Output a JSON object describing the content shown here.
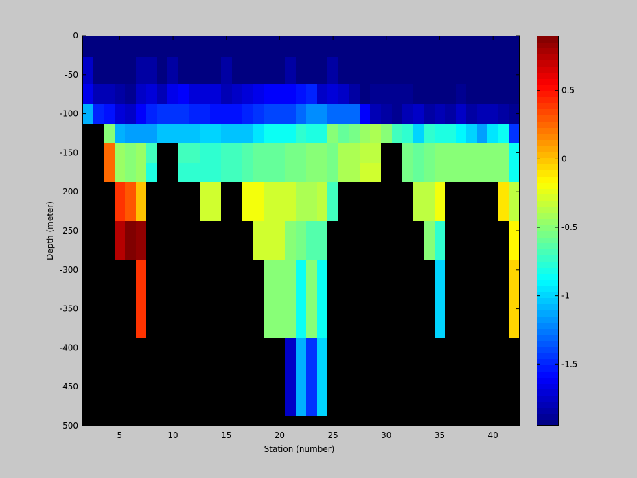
{
  "chart_data": {
    "type": "heatmap",
    "title": "",
    "xlabel": "Station (number)",
    "ylabel": "Depth (meter)",
    "xlim": [
      1.5,
      42.5
    ],
    "ylim": [
      -500,
      0
    ],
    "xticks": [
      5,
      10,
      15,
      20,
      25,
      30,
      35,
      40
    ],
    "yticks": [
      0,
      -50,
      -100,
      -150,
      -200,
      -250,
      -300,
      -350,
      -400,
      -450,
      -500
    ],
    "colorbar": {
      "colormap": "jet",
      "clim": [
        -1.95,
        0.9
      ],
      "ticks": [
        0.5,
        0,
        -0.5,
        -1,
        -1.5
      ],
      "tick_labels": [
        "0.5",
        "0",
        "-0.5",
        "-1",
        "-1.5"
      ]
    },
    "missing_color": "#000000",
    "background_color": "#c8c8c8",
    "stations": [
      2,
      3,
      4,
      5,
      6,
      7,
      8,
      9,
      10,
      11,
      12,
      13,
      14,
      15,
      16,
      17,
      18,
      19,
      20,
      21,
      22,
      23,
      24,
      25,
      26,
      27,
      28,
      29,
      30,
      31,
      32,
      33,
      34,
      35,
      36,
      37,
      38,
      39,
      40,
      41,
      42
    ],
    "depths": [
      -5,
      -50,
      -75,
      -100,
      -125,
      -150,
      -175,
      -200,
      -225,
      -250,
      -275,
      -300,
      -325,
      -350,
      -375,
      -400,
      -425,
      -450,
      -475,
      -500
    ],
    "values": [
      [
        -1.95,
        -1.95,
        -1.95,
        -1.95,
        -1.95,
        -1.95,
        -1.95,
        -1.95,
        -1.95,
        -1.95,
        -1.95,
        -1.95,
        -1.95,
        -1.95,
        -1.95,
        -1.95,
        -1.95,
        -1.95,
        -1.95,
        -1.95,
        -1.95,
        -1.95,
        -1.95,
        -1.95,
        -1.95,
        -1.95,
        -1.95,
        -1.95,
        -1.95,
        -1.95,
        -1.95,
        -1.95,
        -1.95,
        -1.95,
        -1.95,
        -1.95,
        -1.95,
        -1.95,
        -1.95,
        -1.95,
        -1.95
      ],
      [
        -1.75,
        -1.95,
        -1.95,
        -1.95,
        -1.95,
        -1.85,
        -1.85,
        -1.95,
        -1.85,
        -1.95,
        -1.95,
        -1.95,
        -1.95,
        -1.85,
        -1.95,
        -1.95,
        -1.95,
        -1.95,
        -1.95,
        -1.85,
        -1.95,
        -1.95,
        -1.95,
        -1.85,
        -1.95,
        -1.95,
        -1.95,
        -1.95,
        -1.95,
        -1.95,
        -1.95,
        -1.95,
        -1.95,
        -1.95,
        -1.95,
        -1.95,
        -1.95,
        -1.95,
        -1.95,
        -1.95,
        -1.95
      ],
      [
        -1.65,
        -1.8,
        -1.8,
        -1.85,
        -1.9,
        -1.75,
        -1.7,
        -1.8,
        -1.65,
        -1.6,
        -1.7,
        -1.7,
        -1.7,
        -1.8,
        -1.75,
        -1.7,
        -1.65,
        -1.6,
        -1.6,
        -1.6,
        -1.55,
        -1.5,
        -1.75,
        -1.7,
        -1.75,
        -1.85,
        -1.95,
        -1.9,
        -1.9,
        -1.9,
        -1.9,
        -1.95,
        -1.95,
        -1.95,
        -1.95,
        -1.9,
        -1.95,
        -1.95,
        -1.95,
        -1.95,
        -1.95
      ],
      [
        -1.1,
        -1.5,
        -1.55,
        -1.7,
        -1.75,
        -1.6,
        -1.5,
        -1.45,
        -1.45,
        -1.45,
        -1.5,
        -1.5,
        -1.55,
        -1.55,
        -1.55,
        -1.5,
        -1.45,
        -1.4,
        -1.4,
        -1.4,
        -1.3,
        -1.2,
        -1.2,
        -1.3,
        -1.3,
        -1.3,
        -1.6,
        -1.8,
        -1.85,
        -1.9,
        -1.8,
        -1.75,
        -1.85,
        -1.8,
        -1.85,
        -1.75,
        -1.85,
        -1.8,
        -1.8,
        -1.85,
        -1.9
      ],
      [
        null,
        null,
        -0.5,
        -1.1,
        -1.15,
        -1.15,
        -1.15,
        -1.05,
        -1.05,
        -1.05,
        -1.05,
        -1.0,
        -1.0,
        -1.05,
        -1.05,
        -1.05,
        -0.95,
        -0.85,
        -0.85,
        -0.85,
        -0.75,
        -0.8,
        -0.8,
        -0.5,
        -0.6,
        -0.55,
        -0.45,
        -0.4,
        -0.5,
        -0.7,
        -0.75,
        -1.0,
        -0.75,
        -0.8,
        -0.8,
        -0.9,
        -1.0,
        -1.15,
        -0.95,
        -0.85,
        -1.45
      ],
      [
        null,
        null,
        0.25,
        -0.45,
        -0.5,
        -0.45,
        -0.7,
        null,
        null,
        -0.7,
        -0.7,
        -0.75,
        -0.75,
        -0.7,
        -0.7,
        -0.65,
        -0.6,
        -0.6,
        -0.6,
        -0.55,
        -0.55,
        -0.5,
        -0.5,
        -0.55,
        -0.4,
        -0.4,
        -0.35,
        -0.35,
        null,
        null,
        -0.55,
        -0.6,
        -0.55,
        -0.5,
        -0.5,
        -0.5,
        -0.5,
        -0.5,
        -0.5,
        -0.5,
        -0.85
      ],
      [
        null,
        null,
        0.25,
        -0.45,
        -0.5,
        -0.45,
        -0.8,
        null,
        null,
        -0.75,
        -0.75,
        -0.75,
        -0.75,
        -0.7,
        -0.7,
        -0.65,
        -0.6,
        -0.6,
        -0.6,
        -0.55,
        -0.55,
        -0.5,
        -0.5,
        -0.55,
        -0.4,
        -0.4,
        -0.3,
        -0.3,
        null,
        null,
        -0.55,
        -0.6,
        -0.55,
        -0.5,
        -0.5,
        -0.5,
        -0.5,
        -0.5,
        -0.5,
        -0.5,
        -0.85
      ],
      [
        null,
        null,
        null,
        0.4,
        0.3,
        0.0,
        null,
        null,
        null,
        null,
        null,
        -0.3,
        -0.3,
        null,
        null,
        -0.2,
        -0.2,
        -0.3,
        -0.3,
        -0.3,
        -0.4,
        -0.4,
        -0.35,
        -0.7,
        null,
        null,
        null,
        null,
        null,
        null,
        null,
        -0.35,
        -0.35,
        -0.2,
        null,
        null,
        null,
        null,
        null,
        -0.1,
        -0.35
      ],
      [
        null,
        null,
        null,
        0.4,
        0.3,
        0.0,
        null,
        null,
        null,
        null,
        null,
        -0.3,
        -0.3,
        null,
        null,
        -0.2,
        -0.2,
        -0.3,
        -0.3,
        -0.3,
        -0.4,
        -0.4,
        -0.35,
        -0.7,
        null,
        null,
        null,
        null,
        null,
        null,
        null,
        -0.35,
        -0.35,
        -0.2,
        null,
        null,
        null,
        null,
        null,
        -0.1,
        -0.35
      ],
      [
        null,
        null,
        null,
        0.75,
        0.9,
        0.85,
        null,
        null,
        null,
        null,
        null,
        null,
        null,
        null,
        null,
        null,
        -0.3,
        -0.3,
        -0.3,
        -0.5,
        -0.55,
        -0.65,
        -0.65,
        null,
        null,
        null,
        null,
        null,
        null,
        null,
        null,
        null,
        -0.5,
        -0.75,
        null,
        null,
        null,
        null,
        null,
        null,
        -0.15
      ],
      [
        null,
        null,
        null,
        0.75,
        0.9,
        0.85,
        null,
        null,
        null,
        null,
        null,
        null,
        null,
        null,
        null,
        null,
        -0.3,
        -0.3,
        -0.3,
        -0.5,
        -0.55,
        -0.65,
        -0.65,
        null,
        null,
        null,
        null,
        null,
        null,
        null,
        null,
        null,
        -0.5,
        -0.75,
        null,
        null,
        null,
        null,
        null,
        null,
        -0.15
      ],
      [
        null,
        null,
        null,
        null,
        null,
        0.4,
        null,
        null,
        null,
        null,
        null,
        null,
        null,
        null,
        null,
        null,
        null,
        -0.5,
        -0.5,
        -0.5,
        -0.85,
        -0.5,
        -0.85,
        null,
        null,
        null,
        null,
        null,
        null,
        null,
        null,
        null,
        null,
        -1.0,
        null,
        null,
        null,
        null,
        null,
        null,
        -0.05
      ],
      [
        null,
        null,
        null,
        null,
        null,
        0.4,
        null,
        null,
        null,
        null,
        null,
        null,
        null,
        null,
        null,
        null,
        null,
        -0.5,
        -0.5,
        -0.5,
        -0.85,
        -0.5,
        -0.85,
        null,
        null,
        null,
        null,
        null,
        null,
        null,
        null,
        null,
        null,
        -1.0,
        null,
        null,
        null,
        null,
        null,
        null,
        -0.05
      ],
      [
        null,
        null,
        null,
        null,
        null,
        0.4,
        null,
        null,
        null,
        null,
        null,
        null,
        null,
        null,
        null,
        null,
        null,
        -0.5,
        -0.5,
        -0.5,
        -0.85,
        -0.5,
        -0.85,
        null,
        null,
        null,
        null,
        null,
        null,
        null,
        null,
        null,
        null,
        -1.0,
        null,
        null,
        null,
        null,
        null,
        null,
        -0.05
      ],
      [
        null,
        null,
        null,
        null,
        null,
        0.4,
        null,
        null,
        null,
        null,
        null,
        null,
        null,
        null,
        null,
        null,
        null,
        -0.5,
        -0.5,
        -0.5,
        -0.85,
        -0.5,
        -0.85,
        null,
        null,
        null,
        null,
        null,
        null,
        null,
        null,
        null,
        null,
        -1.0,
        null,
        null,
        null,
        null,
        null,
        null,
        -0.05
      ],
      [
        null,
        null,
        null,
        null,
        null,
        null,
        null,
        null,
        null,
        null,
        null,
        null,
        null,
        null,
        null,
        null,
        null,
        null,
        null,
        -1.75,
        -1.1,
        -1.45,
        -1.0,
        null,
        null,
        null,
        null,
        null,
        null,
        null,
        null,
        null,
        null,
        null,
        null,
        null,
        null,
        null,
        null,
        null,
        null
      ],
      [
        null,
        null,
        null,
        null,
        null,
        null,
        null,
        null,
        null,
        null,
        null,
        null,
        null,
        null,
        null,
        null,
        null,
        null,
        null,
        -1.75,
        -1.1,
        -1.45,
        -1.0,
        null,
        null,
        null,
        null,
        null,
        null,
        null,
        null,
        null,
        null,
        null,
        null,
        null,
        null,
        null,
        null,
        null,
        null
      ],
      [
        null,
        null,
        null,
        null,
        null,
        null,
        null,
        null,
        null,
        null,
        null,
        null,
        null,
        null,
        null,
        null,
        null,
        null,
        null,
        -1.75,
        -1.1,
        -1.45,
        -1.0,
        null,
        null,
        null,
        null,
        null,
        null,
        null,
        null,
        null,
        null,
        null,
        null,
        null,
        null,
        null,
        null,
        null,
        null
      ],
      [
        null,
        null,
        null,
        null,
        null,
        null,
        null,
        null,
        null,
        null,
        null,
        null,
        null,
        null,
        null,
        null,
        null,
        null,
        null,
        -1.75,
        -1.1,
        -1.45,
        -1.0,
        null,
        null,
        null,
        null,
        null,
        null,
        null,
        null,
        null,
        null,
        null,
        null,
        null,
        null,
        null,
        null,
        null,
        null
      ],
      [
        null,
        null,
        null,
        null,
        null,
        null,
        null,
        null,
        null,
        null,
        null,
        null,
        null,
        null,
        null,
        null,
        null,
        null,
        null,
        null,
        null,
        null,
        null,
        null,
        null,
        null,
        null,
        null,
        null,
        null,
        null,
        null,
        null,
        null,
        null,
        null,
        null,
        null,
        null,
        null,
        null
      ]
    ]
  }
}
